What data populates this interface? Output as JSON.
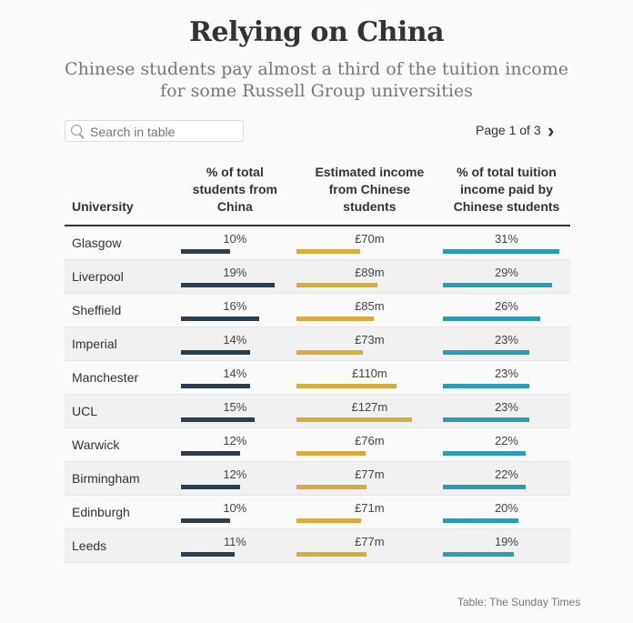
{
  "title": "Relying on China",
  "subtitle": "Chinese students pay almost a third of the tuition income for some Russell Group universities",
  "search": {
    "placeholder": "Search in table"
  },
  "pager": {
    "text": "Page 1 of 3",
    "next": "›"
  },
  "source": "Table: The Sunday Times",
  "colors": {
    "students": "#2b3e4f",
    "income": "#d9ab3a",
    "share": "#2a9db5"
  },
  "chart_data": {
    "type": "table",
    "columns": [
      "University",
      "% of total students from China",
      "Estimated income from Chinese students",
      "% of total tuition income paid by Chinese students"
    ],
    "rows": [
      {
        "university": "Glasgow",
        "students": "10%",
        "income": "£70m",
        "share": "31%",
        "s": 10,
        "i": 70,
        "p": 31
      },
      {
        "university": "Liverpool",
        "students": "19%",
        "income": "£89m",
        "share": "29%",
        "s": 19,
        "i": 89,
        "p": 29
      },
      {
        "university": "Sheffield",
        "students": "16%",
        "income": "£85m",
        "share": "26%",
        "s": 16,
        "i": 85,
        "p": 26
      },
      {
        "university": "Imperial",
        "students": "14%",
        "income": "£73m",
        "share": "23%",
        "s": 14,
        "i": 73,
        "p": 23
      },
      {
        "university": "Manchester",
        "students": "14%",
        "income": "£110m",
        "share": "23%",
        "s": 14,
        "i": 110,
        "p": 23
      },
      {
        "university": "UCL",
        "students": "15%",
        "income": "£127m",
        "share": "23%",
        "s": 15,
        "i": 127,
        "p": 23
      },
      {
        "university": "Warwick",
        "students": "12%",
        "income": "£76m",
        "share": "22%",
        "s": 12,
        "i": 76,
        "p": 22
      },
      {
        "university": "Birmingham",
        "students": "12%",
        "income": "£77m",
        "share": "22%",
        "s": 12,
        "i": 77,
        "p": 22
      },
      {
        "university": "Edinburgh",
        "students": "10%",
        "income": "£71m",
        "share": "20%",
        "s": 10,
        "i": 71,
        "p": 20
      },
      {
        "university": "Leeds",
        "students": "11%",
        "income": "£77m",
        "share": "19%",
        "s": 11,
        "i": 77,
        "p": 19
      }
    ]
  }
}
